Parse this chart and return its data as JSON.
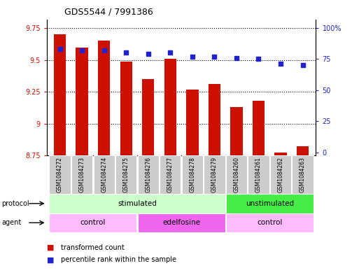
{
  "title": "GDS5544 / 7991386",
  "samples": [
    "GSM1084272",
    "GSM1084273",
    "GSM1084274",
    "GSM1084275",
    "GSM1084276",
    "GSM1084277",
    "GSM1084278",
    "GSM1084279",
    "GSM1084260",
    "GSM1084261",
    "GSM1084262",
    "GSM1084263"
  ],
  "bar_values": [
    9.7,
    9.6,
    9.65,
    9.49,
    9.35,
    9.51,
    9.27,
    9.31,
    9.13,
    9.18,
    8.77,
    8.82
  ],
  "bar_bottom": 8.75,
  "dot_values": [
    83,
    82,
    82,
    80,
    79,
    80,
    77,
    77,
    76,
    75,
    71,
    70
  ],
  "ylim_left": [
    8.75,
    9.82
  ],
  "ylim_right": [
    -2.5,
    107
  ],
  "yticks_left": [
    8.75,
    9.0,
    9.25,
    9.5,
    9.75
  ],
  "ytick_labels_left": [
    "8.75",
    "9",
    "9.25",
    "9.5",
    "9.75"
  ],
  "yticks_right": [
    0,
    25,
    50,
    75,
    100
  ],
  "ytick_labels_right": [
    "0",
    "25",
    "50",
    "75",
    "100%"
  ],
  "bar_color": "#cc1100",
  "dot_color": "#2222cc",
  "bg_color": "#ffffff",
  "sample_bg_color": "#cccccc",
  "protocol_items": [
    {
      "label": "stimulated",
      "start": 0,
      "end": 7,
      "color": "#ccffcc"
    },
    {
      "label": "unstimulated",
      "start": 8,
      "end": 11,
      "color": "#44ee44"
    }
  ],
  "agent_items": [
    {
      "label": "control",
      "start": 0,
      "end": 3,
      "color": "#ffbbff"
    },
    {
      "label": "edelfosine",
      "start": 4,
      "end": 7,
      "color": "#ee66ee"
    },
    {
      "label": "control",
      "start": 8,
      "end": 11,
      "color": "#ffbbff"
    }
  ],
  "legend_items": [
    "transformed count",
    "percentile rank within the sample"
  ],
  "legend_colors": [
    "#cc1100",
    "#2222cc"
  ]
}
